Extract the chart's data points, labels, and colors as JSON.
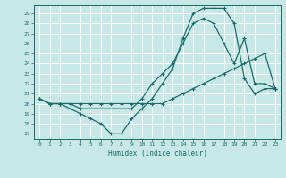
{
  "xlabel": "Humidex (Indice chaleur)",
  "background_color": "#c8e8e8",
  "line_color": "#1a6b6b",
  "grid_color": "#ffffff",
  "xlim": [
    -0.5,
    23.5
  ],
  "ylim": [
    16.5,
    29.8
  ],
  "yticks": [
    17,
    18,
    19,
    20,
    21,
    22,
    23,
    24,
    25,
    26,
    27,
    28,
    29
  ],
  "xticks": [
    0,
    1,
    2,
    3,
    4,
    5,
    6,
    7,
    8,
    9,
    10,
    11,
    12,
    13,
    14,
    15,
    16,
    17,
    18,
    19,
    20,
    21,
    22,
    23
  ],
  "lines": [
    {
      "x": [
        0,
        1,
        2,
        3,
        4,
        5,
        6,
        7,
        8,
        9,
        10,
        11,
        12,
        13,
        14,
        15,
        16,
        17,
        18,
        19,
        20,
        21,
        22,
        23
      ],
      "y": [
        20.5,
        20.0,
        20.0,
        20.0,
        20.0,
        20.0,
        20.0,
        20.0,
        20.0,
        20.0,
        20.0,
        20.0,
        20.0,
        20.5,
        21.0,
        21.5,
        22.0,
        22.5,
        23.0,
        23.5,
        24.0,
        24.5,
        25.0,
        21.5
      ]
    },
    {
      "x": [
        0,
        1,
        2,
        3,
        4,
        9,
        10,
        11,
        12,
        13,
        14,
        15,
        16,
        17,
        18,
        19,
        20,
        21,
        22,
        23
      ],
      "y": [
        20.5,
        20.0,
        20.0,
        20.0,
        19.5,
        19.5,
        20.5,
        22.0,
        23.0,
        24.0,
        26.0,
        28.0,
        28.5,
        28.0,
        26.0,
        24.0,
        26.5,
        22.0,
        22.0,
        21.5
      ]
    },
    {
      "x": [
        0,
        1,
        2,
        3,
        4,
        5,
        6,
        7,
        8,
        9,
        10,
        11,
        12,
        13,
        14,
        15,
        16,
        17,
        18,
        19,
        20,
        21,
        22,
        23
      ],
      "y": [
        20.5,
        20.0,
        20.0,
        19.5,
        19.0,
        18.5,
        18.0,
        17.0,
        17.0,
        18.5,
        19.5,
        20.5,
        22.0,
        23.5,
        26.5,
        29.0,
        29.5,
        29.5,
        29.5,
        28.0,
        22.5,
        21.0,
        21.5,
        21.5
      ]
    }
  ]
}
